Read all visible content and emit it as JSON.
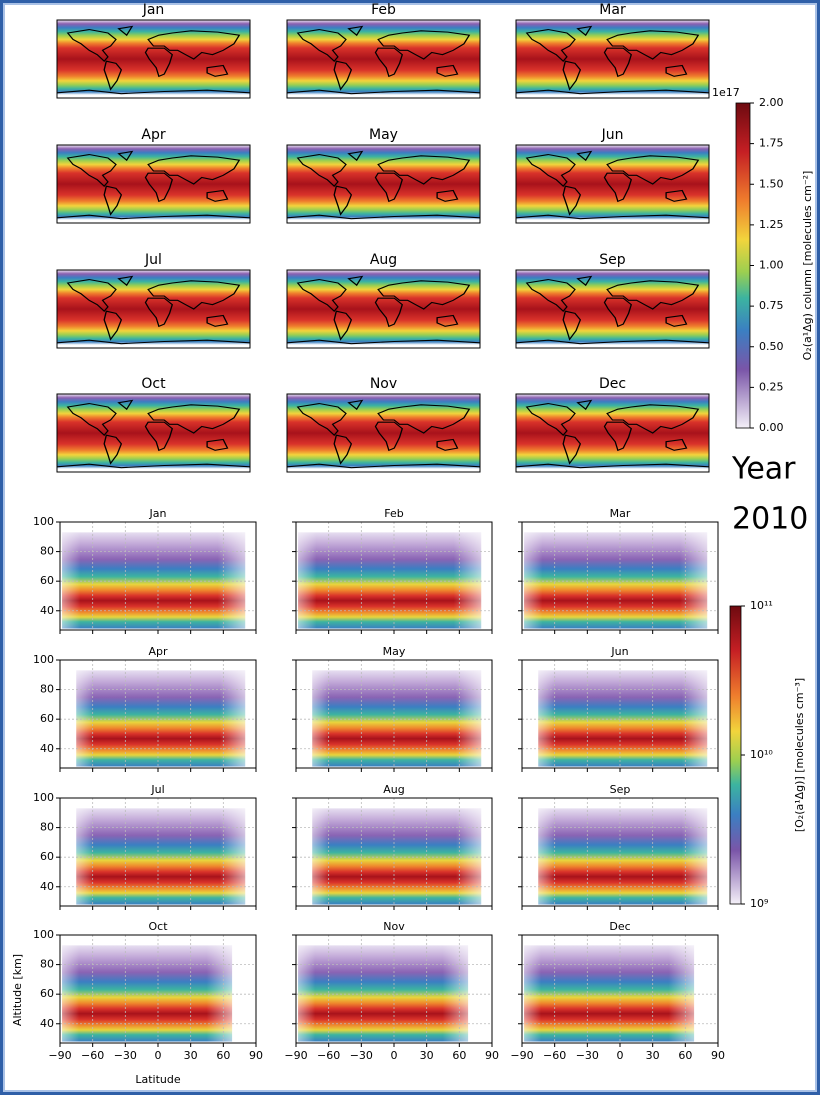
{
  "maps": {
    "panels": [
      "Jan",
      "Feb",
      "Mar",
      "Apr",
      "May",
      "Jun",
      "Jul",
      "Aug",
      "Sep",
      "Oct",
      "Nov",
      "Dec"
    ],
    "colorbar": {
      "exponent": "1e17",
      "ticks": [
        "2.00",
        "1.75",
        "1.50",
        "1.25",
        "1.00",
        "0.75",
        "0.50",
        "0.25",
        "0.00"
      ],
      "label": "O₂(a¹Δg) column [molecules cm⁻²]"
    }
  },
  "year": {
    "line1": "Year",
    "line2": "2010"
  },
  "profiles": {
    "panels": [
      "Jan",
      "Feb",
      "Mar",
      "Apr",
      "May",
      "Jun",
      "Jul",
      "Aug",
      "Sep",
      "Oct",
      "Nov",
      "Dec"
    ],
    "yticks": [
      "100",
      "80",
      "60",
      "40"
    ],
    "xticks": [
      "−90",
      "−60",
      "−30",
      "0",
      "30",
      "60",
      "90"
    ],
    "ylabel": "Altitude [km]",
    "xlabel": "Latitude",
    "colorbar": {
      "ticks": [
        "10¹¹",
        "10¹⁰",
        "10⁹"
      ],
      "label": "[O₂(a¹Δg)] [molecules cm⁻³]"
    }
  }
}
